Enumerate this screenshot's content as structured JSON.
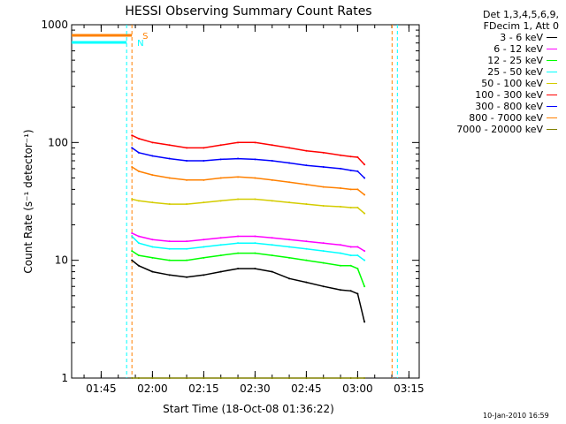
{
  "chart_data": {
    "type": "line",
    "title": "HESSI Observing Summary Count Rates",
    "xlabel": "Start Time (18-Oct-08 01:36:22)",
    "ylabel": "Count Rate (s⁻¹ detector⁻¹)",
    "y_scale": "log",
    "ylim": [
      1,
      1000
    ],
    "xlim": [
      "01:36:22",
      "03:18:00"
    ],
    "x_ticks": [
      "01:45",
      "02:00",
      "02:15",
      "02:30",
      "02:45",
      "03:00",
      "03:15"
    ],
    "y_ticks": [
      "1",
      "10",
      "100",
      "1000"
    ],
    "legend_header": [
      "Det 1,3,4,5,6,9,",
      "FDecim 1, Att 0"
    ],
    "legend_position": "right",
    "timestamp": "10-Jan-2010 16:59",
    "data_interval": [
      "01:54:00",
      "03:08:00"
    ],
    "series": [
      {
        "name": "3 - 6 keV",
        "color": "#000000",
        "x": [
          "01:54",
          "01:56",
          "02:00",
          "02:05",
          "02:10",
          "02:15",
          "02:20",
          "02:25",
          "02:30",
          "02:35",
          "02:40",
          "02:45",
          "02:50",
          "02:55",
          "02:58",
          "03:00",
          "03:02"
        ],
        "y": [
          10,
          9,
          8,
          7.5,
          7.2,
          7.5,
          8,
          8.5,
          8.5,
          8,
          7,
          6.5,
          6,
          5.6,
          5.5,
          5.2,
          3
        ]
      },
      {
        "name": "6 - 12 keV",
        "color": "#ff00ff",
        "x": [
          "01:54",
          "01:56",
          "02:00",
          "02:05",
          "02:10",
          "02:15",
          "02:20",
          "02:25",
          "02:30",
          "02:35",
          "02:40",
          "02:45",
          "02:50",
          "02:55",
          "02:58",
          "03:00",
          "03:02"
        ],
        "y": [
          17,
          16,
          15,
          14.5,
          14.5,
          15,
          15.5,
          16,
          16,
          15.5,
          15,
          14.5,
          14,
          13.5,
          13,
          13,
          12
        ]
      },
      {
        "name": "12 - 25 keV",
        "color": "#00ff00",
        "x": [
          "01:54",
          "01:56",
          "02:00",
          "02:05",
          "02:10",
          "02:15",
          "02:20",
          "02:25",
          "02:30",
          "02:35",
          "02:40",
          "02:45",
          "02:50",
          "02:55",
          "02:58",
          "03:00",
          "03:02"
        ],
        "y": [
          12,
          11,
          10.5,
          10,
          10,
          10.5,
          11,
          11.5,
          11.5,
          11,
          10.5,
          10,
          9.5,
          9,
          9,
          8.5,
          6
        ]
      },
      {
        "name": "25 - 50 keV",
        "color": "#00ffff",
        "x": [
          "01:54",
          "01:56",
          "02:00",
          "02:05",
          "02:10",
          "02:15",
          "02:20",
          "02:25",
          "02:30",
          "02:35",
          "02:40",
          "02:45",
          "02:50",
          "02:55",
          "02:58",
          "03:00",
          "03:02"
        ],
        "y": [
          16,
          14,
          13,
          12.5,
          12.5,
          13,
          13.5,
          14,
          14,
          13.5,
          13,
          12.5,
          12,
          11.5,
          11,
          11,
          10
        ]
      },
      {
        "name": "50 - 100 keV",
        "color": "#d4cc00",
        "x": [
          "01:54",
          "01:56",
          "02:00",
          "02:05",
          "02:10",
          "02:15",
          "02:20",
          "02:25",
          "02:30",
          "02:35",
          "02:40",
          "02:45",
          "02:50",
          "02:55",
          "02:58",
          "03:00",
          "03:02"
        ],
        "y": [
          33,
          32,
          31,
          30,
          30,
          31,
          32,
          33,
          33,
          32,
          31,
          30,
          29,
          28.5,
          28,
          28,
          25
        ]
      },
      {
        "name": "100 - 300 keV",
        "color": "#ff0000",
        "x": [
          "01:54",
          "01:56",
          "02:00",
          "02:05",
          "02:10",
          "02:15",
          "02:20",
          "02:25",
          "02:30",
          "02:35",
          "02:40",
          "02:45",
          "02:50",
          "02:55",
          "02:58",
          "03:00",
          "03:02"
        ],
        "y": [
          115,
          108,
          100,
          95,
          90,
          90,
          95,
          100,
          100,
          95,
          90,
          85,
          82,
          78,
          76,
          75,
          65
        ]
      },
      {
        "name": "300 - 800 keV",
        "color": "#0000ff",
        "x": [
          "01:54",
          "01:56",
          "02:00",
          "02:05",
          "02:10",
          "02:15",
          "02:20",
          "02:25",
          "02:30",
          "02:35",
          "02:40",
          "02:45",
          "02:50",
          "02:55",
          "02:58",
          "03:00",
          "03:02"
        ],
        "y": [
          90,
          82,
          77,
          73,
          70,
          70,
          72,
          73,
          72,
          70,
          67,
          64,
          62,
          60,
          58,
          57,
          50
        ]
      },
      {
        "name": "800 - 7000 keV",
        "color": "#ff8000",
        "x": [
          "01:54",
          "01:56",
          "02:00",
          "02:05",
          "02:10",
          "02:15",
          "02:20",
          "02:25",
          "02:30",
          "02:35",
          "02:40",
          "02:45",
          "02:50",
          "02:55",
          "02:58",
          "03:00",
          "03:02"
        ],
        "y": [
          62,
          57,
          53,
          50,
          48,
          48,
          50,
          51,
          50,
          48,
          46,
          44,
          42,
          41,
          40,
          40,
          36
        ]
      },
      {
        "name": "7000 - 20000 keV",
        "color": "#808000",
        "x": [
          "01:54",
          "01:56",
          "02:00",
          "02:05",
          "02:10",
          "02:15",
          "02:20",
          "02:25",
          "02:30",
          "02:35",
          "02:40",
          "02:45",
          "02:50",
          "02:55",
          "02:58",
          "03:00",
          "03:02"
        ],
        "y": [
          1,
          1,
          1,
          1,
          1,
          1,
          1,
          1,
          1,
          1,
          1,
          1,
          1,
          1,
          1,
          1,
          1
        ]
      }
    ],
    "flag_markers": [
      {
        "label": "S",
        "color": "#ff8000"
      },
      {
        "label": "N",
        "color": "#00ffff"
      }
    ]
  }
}
